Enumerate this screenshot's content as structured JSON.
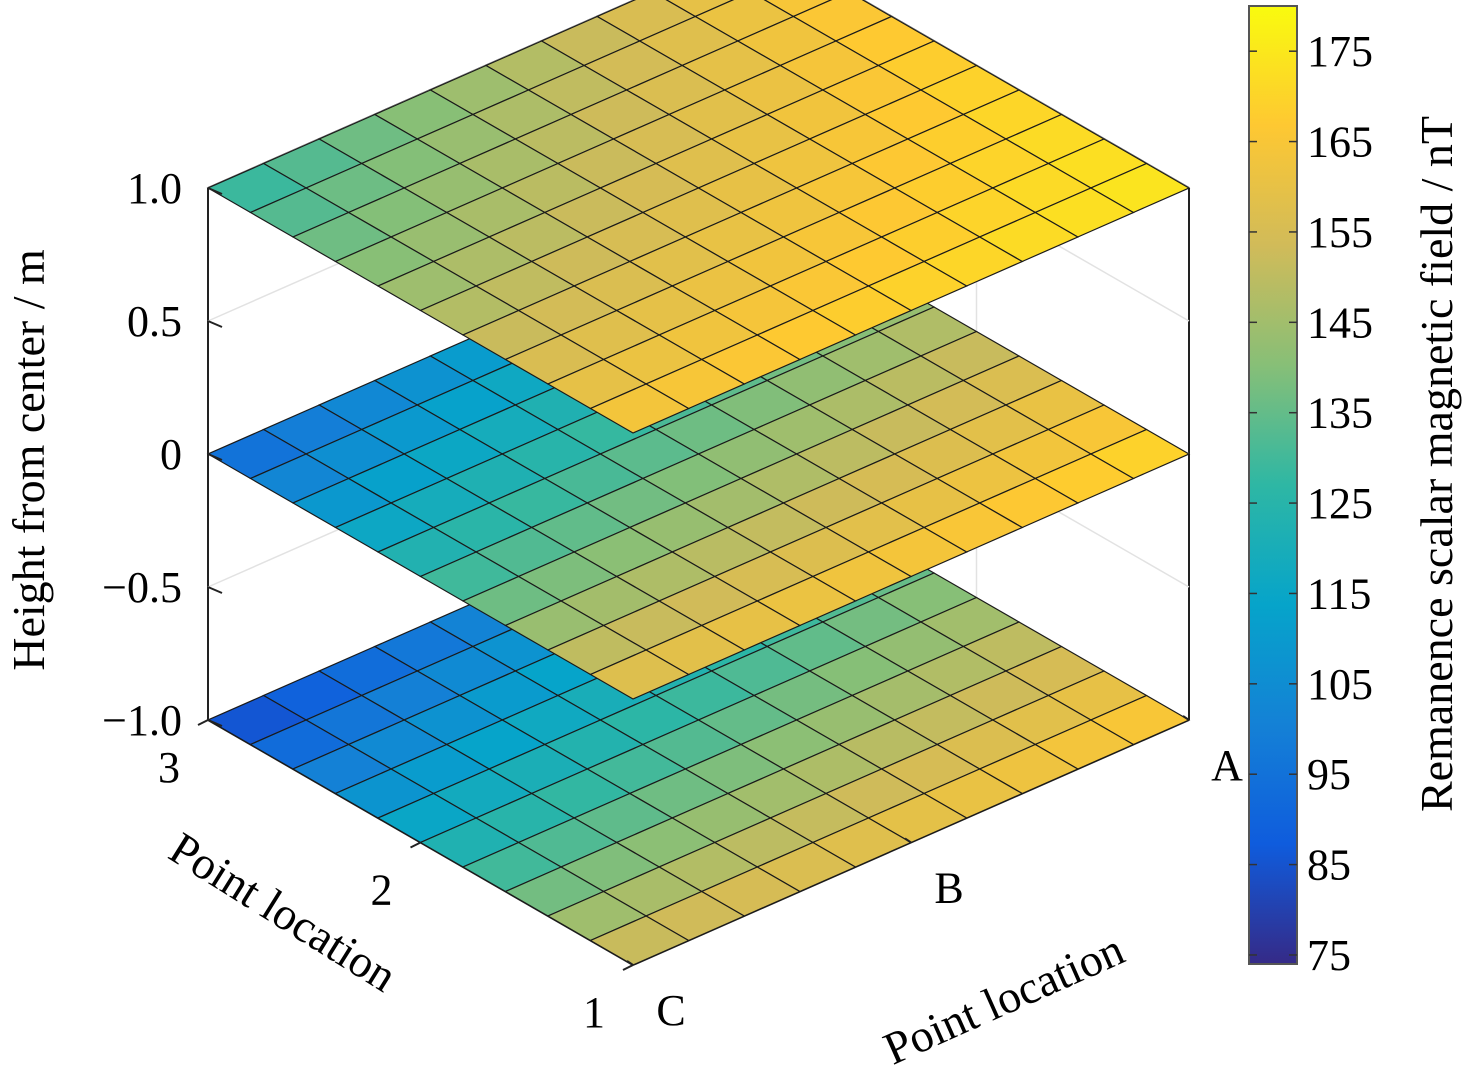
{
  "chart_data": {
    "type": "surface",
    "title": "",
    "xlabel": "Point location",
    "ylabel": "Point location",
    "zlabel": "Height from center / m",
    "colorbar_label": "Remanence scalar magnetic field / nT",
    "x_ticks": [
      "A",
      "B",
      "C"
    ],
    "y_ticks": [
      "1",
      "2",
      "3"
    ],
    "z_ticks": [
      "1.0",
      "0.5",
      "0",
      "−0.5",
      "−1.0"
    ],
    "z_tick_values": [
      1.0,
      0.5,
      0,
      -0.5,
      -1.0
    ],
    "zlim": [
      -1.0,
      1.0
    ],
    "colorbar_ticks": [
      "175",
      "165",
      "155",
      "145",
      "135",
      "125",
      "115",
      "105",
      "95",
      "85",
      "75"
    ],
    "colorbar_tick_values": [
      175,
      165,
      155,
      145,
      135,
      125,
      115,
      105,
      95,
      85,
      75
    ],
    "clim": [
      74,
      180
    ],
    "colormap": [
      "#352a87",
      "#0f5cdd",
      "#1481d6",
      "#06a4ca",
      "#2eb7a4",
      "#87bf77",
      "#d1bb59",
      "#fec832",
      "#f9fb0e"
    ],
    "grid": true,
    "grid_resolution": 10,
    "layers": [
      {
        "z": 1.0,
        "corners": {
          "A1": 175,
          "C1": 165,
          "C3": 125,
          "A3": 165
        }
      },
      {
        "z": 0,
        "corners": {
          "A1": 172,
          "C1": 160,
          "C3": 90,
          "A3": 130
        }
      },
      {
        "z": -1.0,
        "corners": {
          "A1": 168,
          "C1": 155,
          "C3": 80,
          "A3": 120
        }
      }
    ]
  }
}
